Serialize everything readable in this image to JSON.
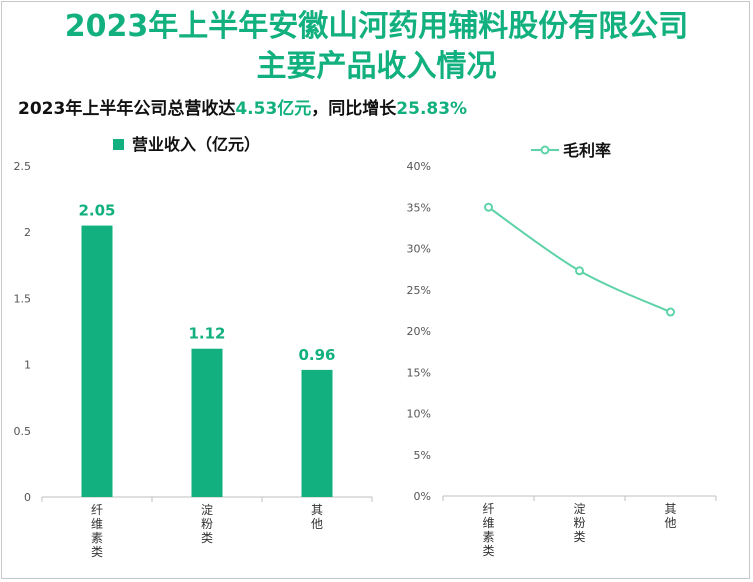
{
  "page": {
    "title_line_1": "2023年上半年安徽山河药用辅料股份有限公司",
    "title_line_2": "主要产品收入情况",
    "subtitle_prefix": "2023年上半年公司总营收达",
    "subtitle_value_1": "4.53亿元",
    "subtitle_middle": "，同比增长",
    "subtitle_value_2": "25.83%"
  },
  "colors": {
    "accent": "#12b07e",
    "line": "#5ed3a8"
  },
  "chart_data": [
    {
      "type": "bar",
      "legend": "营业收入（亿元）",
      "legend_position": "top",
      "categories": [
        "纤维素类",
        "淀粉类",
        "其他"
      ],
      "values": [
        2.05,
        1.12,
        0.96
      ],
      "value_labels": [
        "2.05",
        "1.12",
        "0.96"
      ],
      "ylim": [
        0,
        2.5
      ],
      "yticks": [
        "0",
        "0.5",
        "1",
        "1.5",
        "2",
        "2.5"
      ],
      "grid": false
    },
    {
      "type": "line",
      "legend": "毛利率",
      "legend_position": "top",
      "categories": [
        "纤维素类",
        "淀粉类",
        "其他"
      ],
      "values": [
        35.0,
        27.3,
        22.3
      ],
      "ylim": [
        0,
        40
      ],
      "yticks": [
        "0%",
        "5%",
        "10%",
        "15%",
        "20%",
        "25%",
        "30%",
        "35%",
        "40%"
      ],
      "grid": false
    }
  ]
}
